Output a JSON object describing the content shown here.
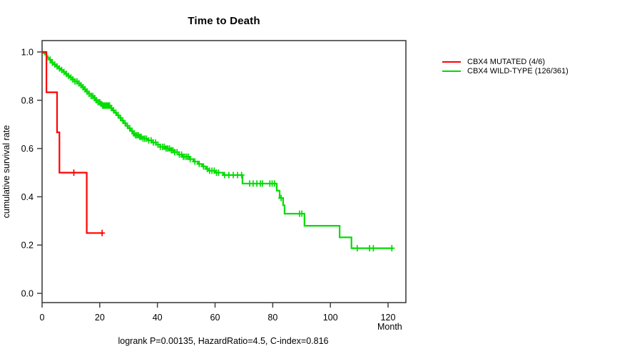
{
  "title": "Time to Death",
  "ylabel": "cumulative survival rate",
  "xlabel": "Month",
  "caption": "logrank P=0.00135, HazardRatio=4.5, C-index=0.816",
  "legend": [
    {
      "label": "CBX4 MUTATED (4/6)",
      "color": "#ff0000"
    },
    {
      "label": "CBX4 WILD-TYPE (126/361)",
      "color": "#00dc00"
    }
  ],
  "colors": {
    "mutated": "#ff0000",
    "wildtype": "#00dc00",
    "axis": "#404040",
    "text": "#000000"
  },
  "chart_data": {
    "type": "line",
    "subtype": "kaplan-meier-step-curves",
    "title": "Time to Death",
    "xlabel": "Month",
    "ylabel": "cumulative survival rate",
    "xlim": [
      0,
      126
    ],
    "ylim": [
      0,
      1.05
    ],
    "xticks": [
      0,
      20,
      40,
      60,
      80,
      100,
      120
    ],
    "yticks": [
      0.0,
      0.2,
      0.4,
      0.6,
      0.8,
      1.0
    ],
    "grid": false,
    "legend_position": "right-outside",
    "series": [
      {
        "name": "CBX4 MUTATED (4/6)",
        "color": "#ff0000",
        "events": "4/6",
        "steps": [
          [
            0,
            1.0
          ],
          [
            1.5,
            0.833
          ],
          [
            5.2,
            0.667
          ],
          [
            6.0,
            0.5
          ],
          [
            15.5,
            0.25
          ]
        ],
        "end_month": 21.2,
        "censor_months": [
          11.0,
          20.8
        ]
      },
      {
        "name": "CBX4 WILD-TYPE (126/361)",
        "color": "#00dc00",
        "events": "126/361",
        "steps": [
          [
            0,
            1.0
          ],
          [
            0.5,
            0.995
          ],
          [
            1,
            0.99
          ],
          [
            1.5,
            0.983
          ],
          [
            2,
            0.975
          ],
          [
            2.5,
            0.968
          ],
          [
            3,
            0.962
          ],
          [
            3.5,
            0.955
          ],
          [
            4.2,
            0.948
          ],
          [
            5,
            0.94
          ],
          [
            5.8,
            0.932
          ],
          [
            6.6,
            0.925
          ],
          [
            7.4,
            0.917
          ],
          [
            8.2,
            0.909
          ],
          [
            9,
            0.901
          ],
          [
            9.8,
            0.894
          ],
          [
            10.6,
            0.886
          ],
          [
            11.4,
            0.878
          ],
          [
            12.2,
            0.87
          ],
          [
            13,
            0.862
          ],
          [
            13.8,
            0.854
          ],
          [
            14.6,
            0.845
          ],
          [
            15.4,
            0.836
          ],
          [
            16.2,
            0.827
          ],
          [
            17,
            0.818
          ],
          [
            17.8,
            0.809
          ],
          [
            18.6,
            0.8
          ],
          [
            19.4,
            0.792
          ],
          [
            20.2,
            0.785
          ],
          [
            21,
            0.778
          ],
          [
            23.5,
            0.768
          ],
          [
            24.3,
            0.758
          ],
          [
            25,
            0.748
          ],
          [
            25.8,
            0.738
          ],
          [
            26.6,
            0.727
          ],
          [
            27.4,
            0.716
          ],
          [
            28.2,
            0.705
          ],
          [
            29,
            0.694
          ],
          [
            29.8,
            0.684
          ],
          [
            30.6,
            0.673
          ],
          [
            31.4,
            0.662
          ],
          [
            32.2,
            0.655
          ],
          [
            33.5,
            0.648
          ],
          [
            35,
            0.641
          ],
          [
            36.5,
            0.634
          ],
          [
            38,
            0.625
          ],
          [
            39.5,
            0.616
          ],
          [
            41,
            0.607
          ],
          [
            42.5,
            0.6
          ],
          [
            44.5,
            0.593
          ],
          [
            46,
            0.585
          ],
          [
            47.5,
            0.575
          ],
          [
            48.5,
            0.566
          ],
          [
            51,
            0.556
          ],
          [
            52.5,
            0.546
          ],
          [
            54,
            0.536
          ],
          [
            55.5,
            0.526
          ],
          [
            56.8,
            0.515
          ],
          [
            58,
            0.508
          ],
          [
            60,
            0.5
          ],
          [
            62.8,
            0.49
          ],
          [
            69.5,
            0.455
          ],
          [
            81.4,
            0.425
          ],
          [
            82.4,
            0.395
          ],
          [
            83.6,
            0.365
          ],
          [
            84.1,
            0.33
          ],
          [
            91,
            0.28
          ],
          [
            103.2,
            0.232
          ],
          [
            107.3,
            0.187
          ]
        ],
        "end_month": 121.7,
        "censor_months": [
          2.8,
          3.6,
          4.4,
          5.2,
          6,
          6.8,
          7.6,
          8.4,
          9.2,
          10,
          10.7,
          11.4,
          12.1,
          12.8,
          13.5,
          14.2,
          14.9,
          15.6,
          16.3,
          17,
          17.6,
          18.2,
          18.8,
          19.4,
          20,
          20.5,
          21,
          21.4,
          21.8,
          22.2,
          22.6,
          23,
          23.4,
          24,
          24.8,
          25.6,
          26.4,
          27.2,
          28,
          28.8,
          29.6,
          30.4,
          31.2,
          31.9,
          32.4,
          32.9,
          33.4,
          33.9,
          34.4,
          35,
          35.6,
          36.2,
          37,
          37.8,
          38.6,
          39.4,
          40.2,
          41,
          41.8,
          42.4,
          43,
          43.6,
          44.2,
          44.8,
          45.4,
          46,
          46.8,
          47.6,
          48.4,
          49,
          49.6,
          50.2,
          50.8,
          51.4,
          53,
          54.5,
          56,
          57.3,
          58.1,
          58.9,
          59.7,
          60.5,
          61.2,
          63.3,
          64.8,
          66.3,
          67.8,
          69.2,
          72,
          73.2,
          74.5,
          75.7,
          76.4,
          79,
          79.8,
          80.6,
          82.9,
          89.3,
          90.1,
          109.3,
          113.6,
          114.9,
          121.3
        ]
      }
    ]
  }
}
